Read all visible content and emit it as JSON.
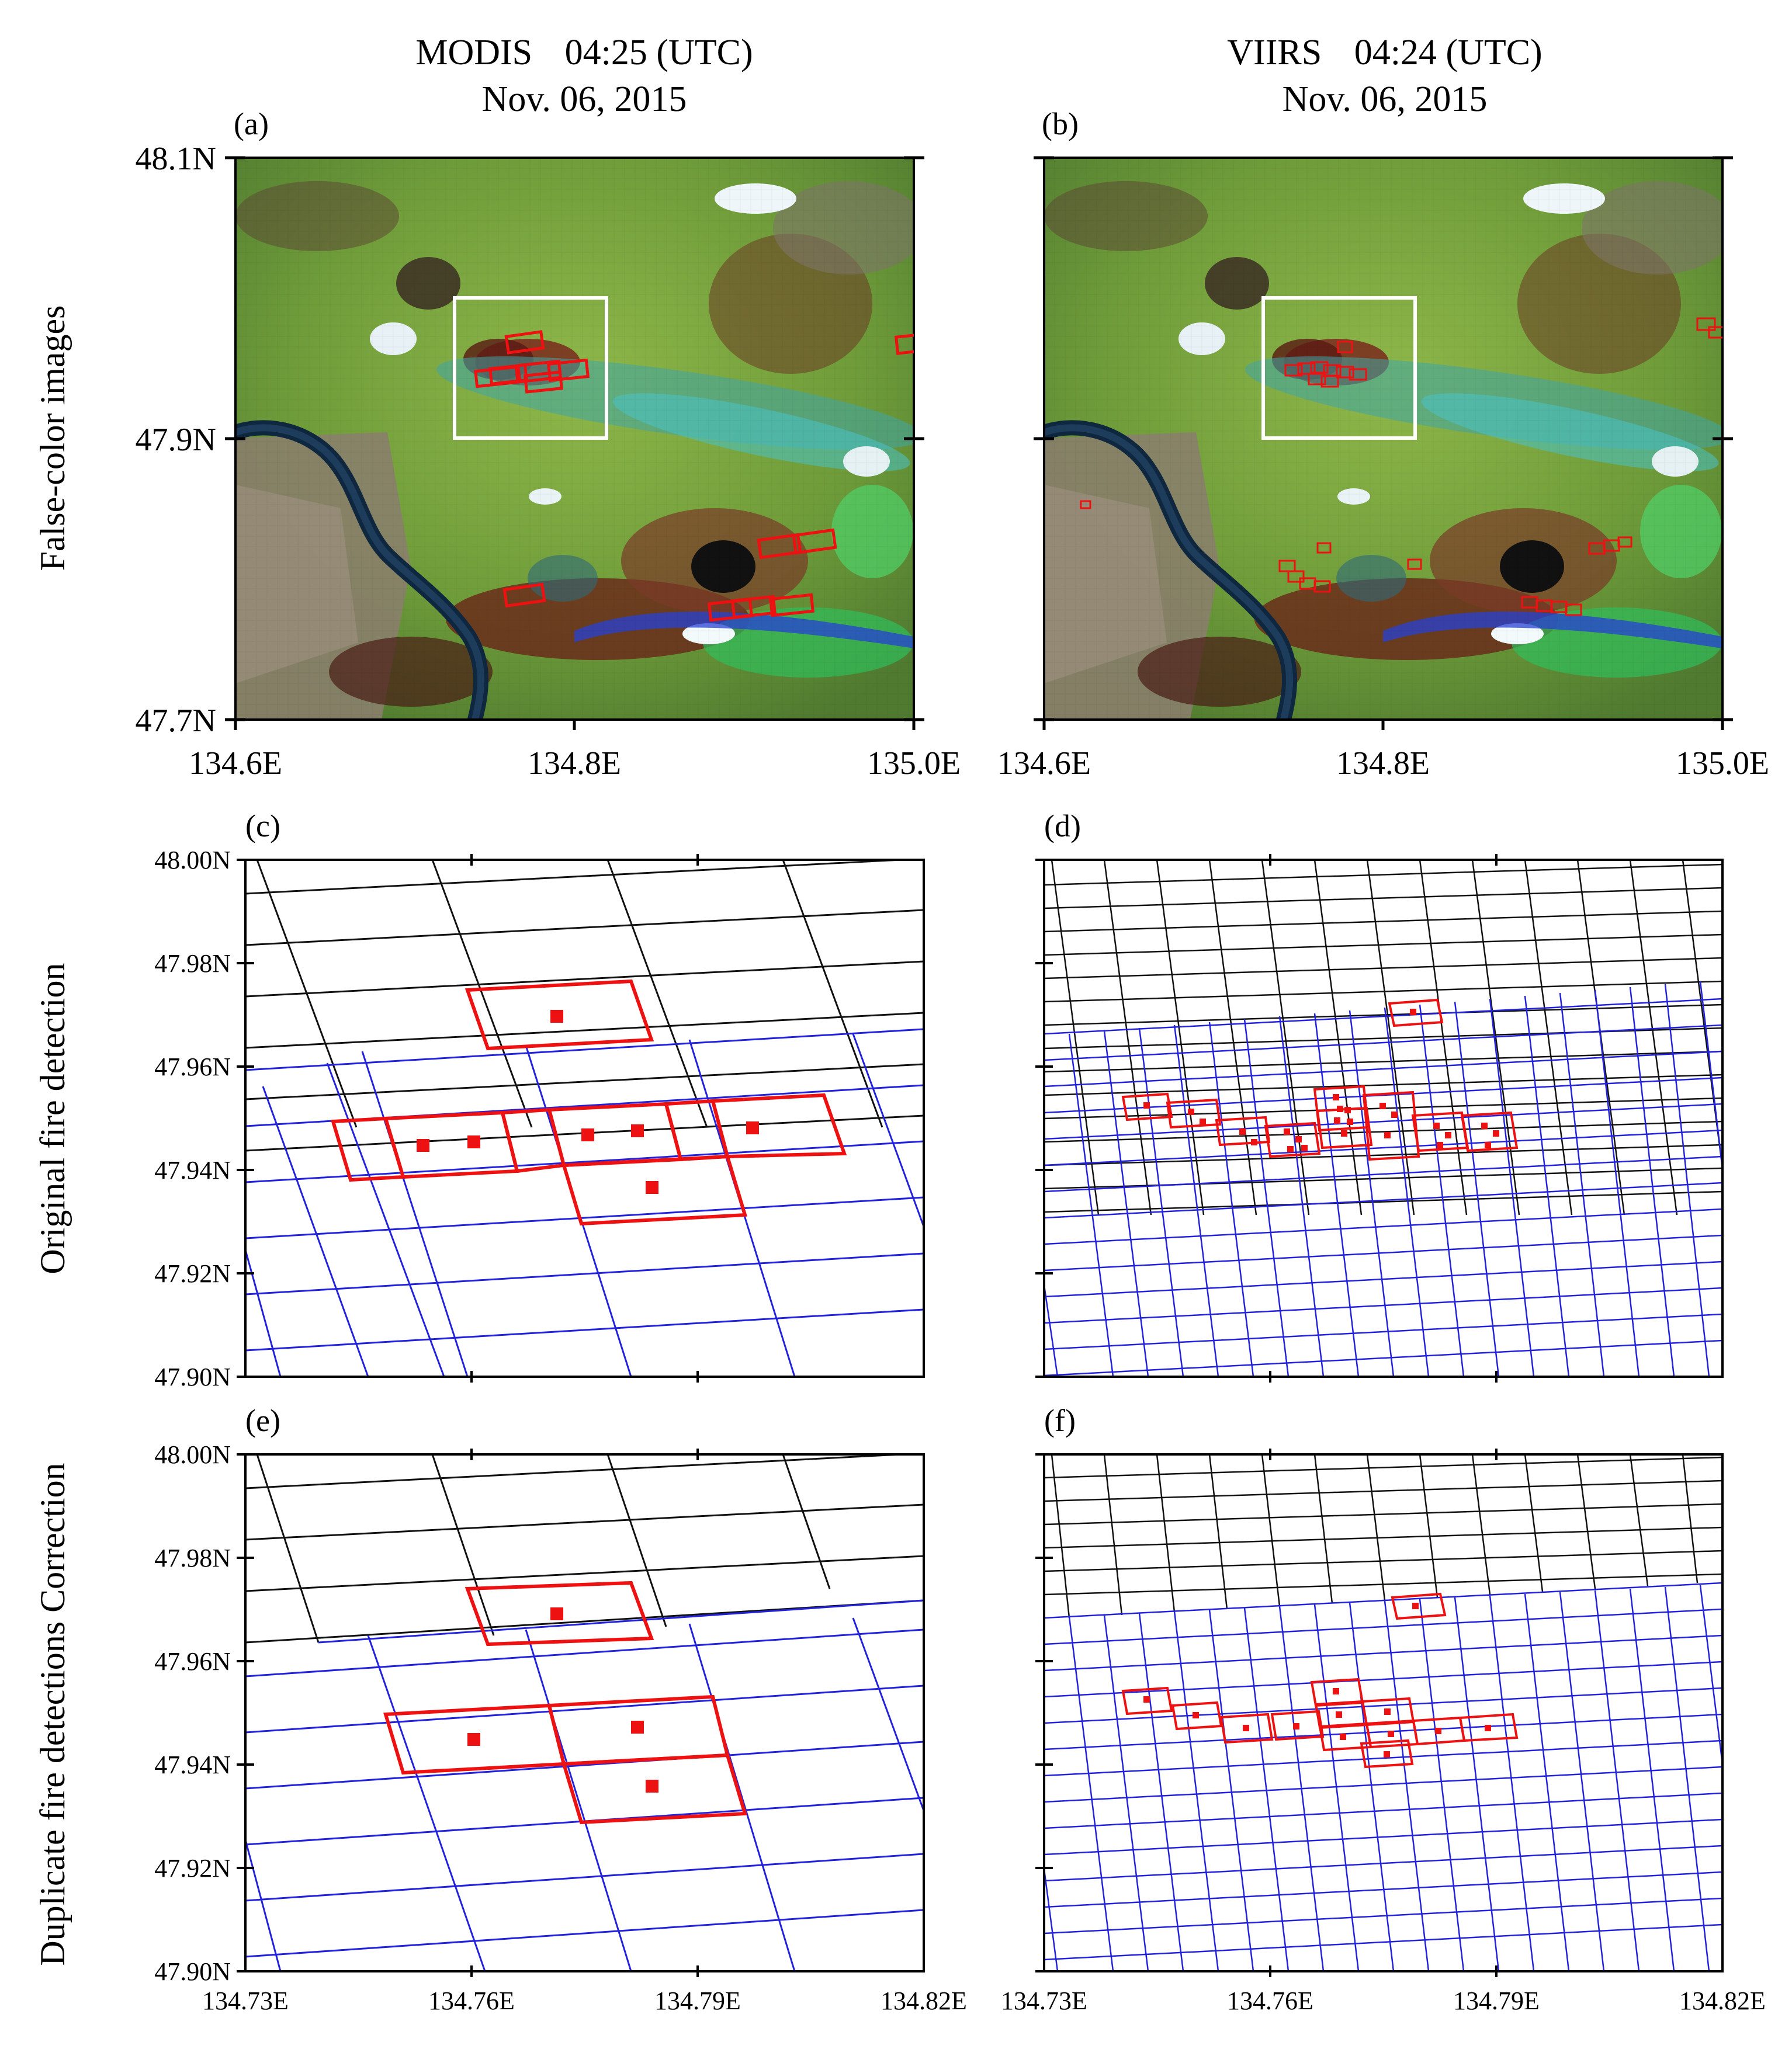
{
  "columns": [
    {
      "sensor": "MODIS",
      "time": "04:25 (UTC)",
      "date": "Nov. 06, 2015"
    },
    {
      "sensor": "VIIRS",
      "time": "04:24 (UTC)",
      "date": "Nov. 06, 2015"
    }
  ],
  "row_labels": [
    "False-color images",
    "Original fire detection",
    "Duplicate fire detections Correction"
  ],
  "panels": {
    "a": {
      "label": "(a)",
      "x_ticks": [
        "134.6E",
        "134.8E",
        "135.0E"
      ],
      "y_ticks": [
        "48.1N",
        "47.9N",
        "47.7N"
      ]
    },
    "b": {
      "label": "(b)",
      "x_ticks": [
        "134.6E",
        "134.8E",
        "135.0E"
      ]
    },
    "c": {
      "label": "(c)",
      "y_ticks": [
        "48.00N",
        "47.98N",
        "47.96N",
        "47.94N",
        "47.92N",
        "47.90N"
      ]
    },
    "d": {
      "label": "(d)"
    },
    "e": {
      "label": "(e)",
      "y_ticks": [
        "48.00N",
        "47.98N",
        "47.96N",
        "47.94N",
        "47.92N",
        "47.90N"
      ],
      "x_ticks": [
        "134.73E",
        "134.76E",
        "134.79E",
        "134.82E"
      ]
    },
    "f": {
      "label": "(f)",
      "x_ticks": [
        "134.73E",
        "134.76E",
        "134.79E",
        "134.82E"
      ]
    }
  },
  "zoom_box": {
    "lon": [
      134.73,
      134.82
    ],
    "lat": [
      47.9,
      48.0
    ]
  },
  "colors": {
    "fire": "#ee1111",
    "scan_previous": "#111111",
    "scan_current": "#2222dd",
    "zoom_box": "#ffffff",
    "background": "#ffffff"
  },
  "icons": {
    "fire_pixel": "red-square-marker"
  }
}
